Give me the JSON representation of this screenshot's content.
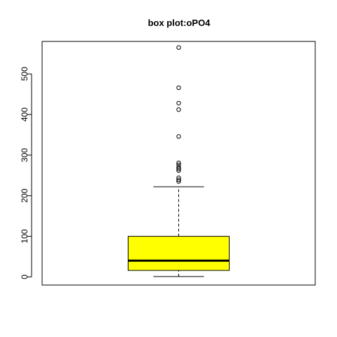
{
  "chart_data": {
    "type": "boxplot",
    "title": "box plot:oPO4",
    "xlabel": "",
    "ylabel": "",
    "ylim": [
      -20,
      580
    ],
    "y_ticks": [
      0,
      100,
      200,
      300,
      400,
      500
    ],
    "box_color": "#ffff00",
    "box": {
      "whisker_low": 1,
      "q1": 16,
      "median": 40,
      "q3": 100,
      "whisker_high": 222
    },
    "outliers": [
      235,
      239,
      244,
      262,
      266,
      270,
      276,
      281,
      346,
      412,
      428,
      466,
      565
    ]
  }
}
